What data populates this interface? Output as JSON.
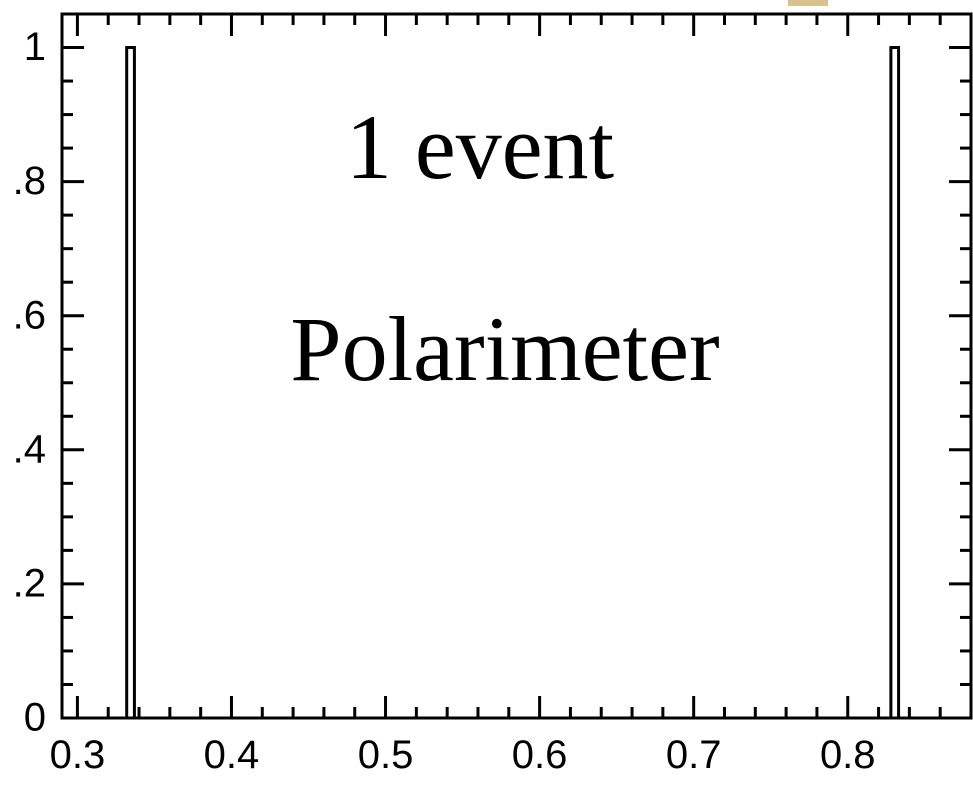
{
  "chart_data": {
    "type": "histogram",
    "bins": [
      0.332,
      0.337,
      0.828,
      0.833
    ],
    "counts": [
      1,
      0,
      1
    ],
    "color": "#ffffff",
    "edge_color": "#000000",
    "xlim": [
      0.29,
      0.88
    ],
    "ylim": [
      0,
      1.05
    ],
    "xticks": [
      0.3,
      0.4,
      0.5,
      0.6,
      0.7,
      0.8
    ],
    "yticks": [
      0,
      {
        "value": 0.2,
        "label": ".2"
      },
      {
        "value": 0.4,
        "label": ".4"
      },
      {
        "value": 0.6,
        "label": ".6"
      },
      {
        "value": 0.8,
        "label": ".8"
      },
      1
    ],
    "annotations": [
      "1 event",
      "Polarimeter"
    ],
    "grid": false
  }
}
